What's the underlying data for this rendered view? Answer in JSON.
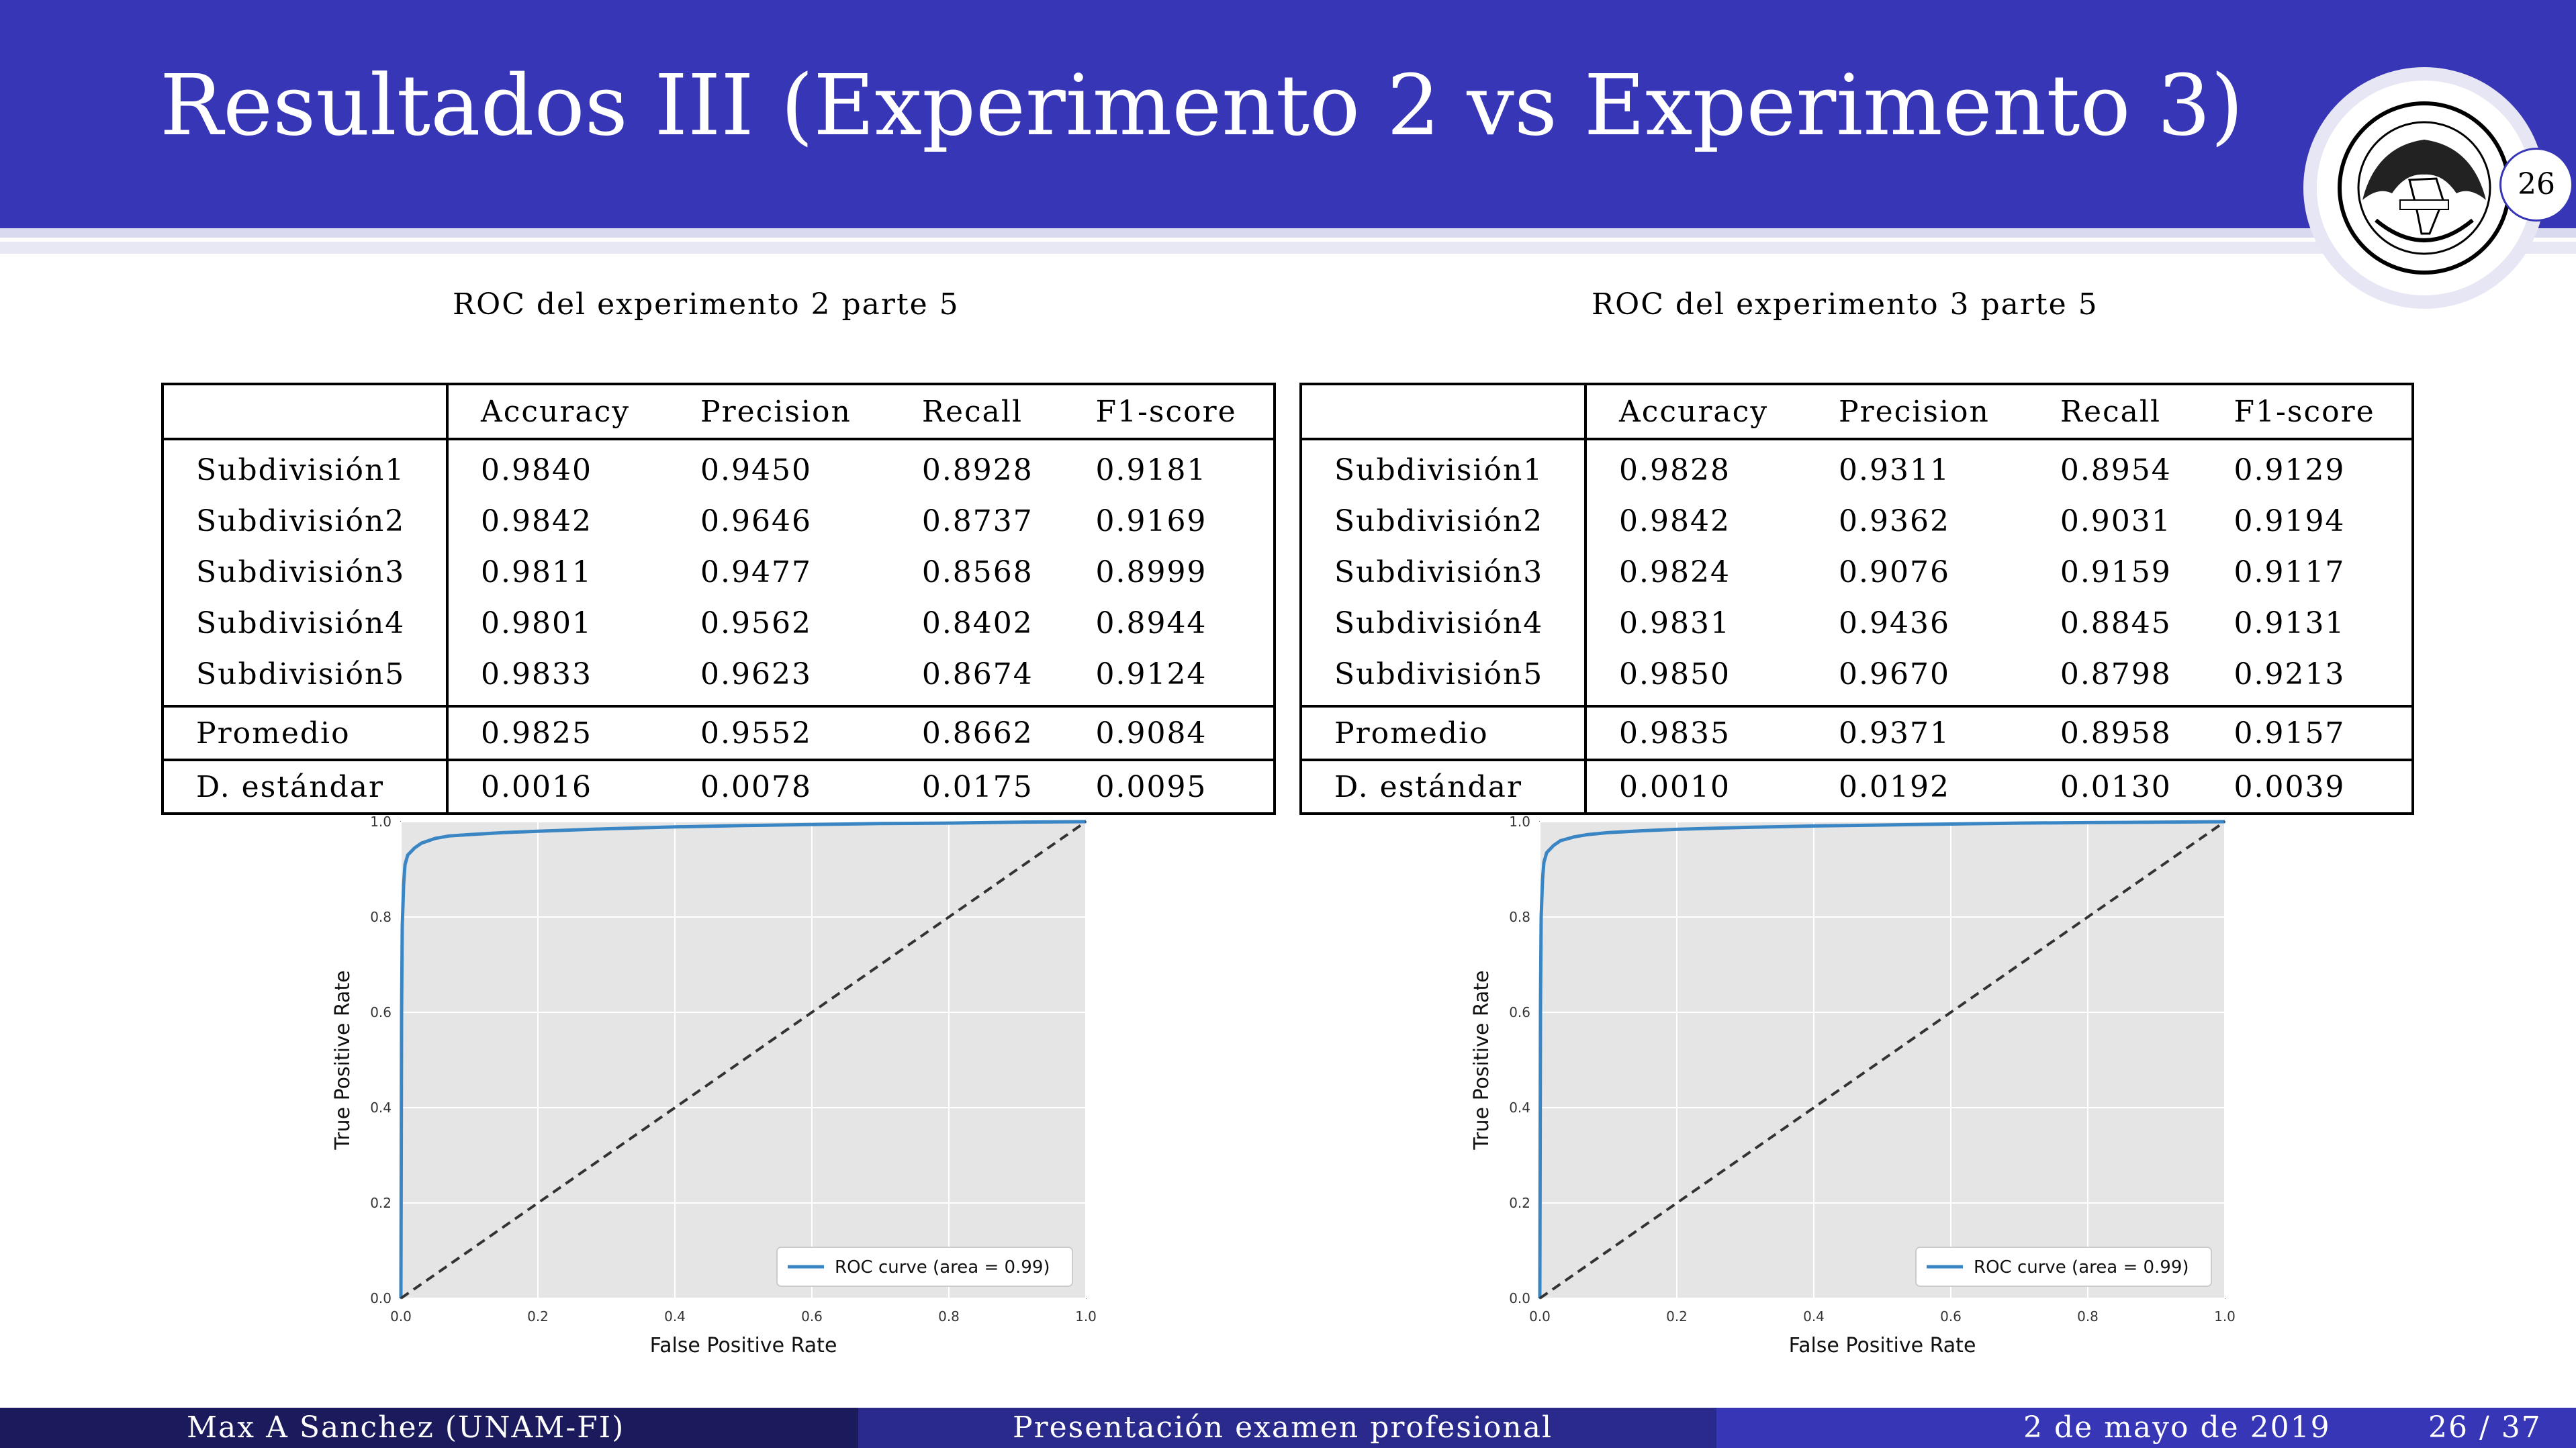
{
  "slide": {
    "title": "Resultados III (Experimento 2 vs Experimento 3)",
    "page_badge": "26"
  },
  "experiments": [
    {
      "caption": "ROC del experimento 2 parte 5",
      "columns": [
        "",
        "Accuracy",
        "Precision",
        "Recall",
        "F1-score"
      ],
      "rows": [
        [
          "Subdivisión1",
          "0.9840",
          "0.9450",
          "0.8928",
          "0.9181"
        ],
        [
          "Subdivisión2",
          "0.9842",
          "0.9646",
          "0.8737",
          "0.9169"
        ],
        [
          "Subdivisión3",
          "0.9811",
          "0.9477",
          "0.8568",
          "0.8999"
        ],
        [
          "Subdivisión4",
          "0.9801",
          "0.9562",
          "0.8402",
          "0.8944"
        ],
        [
          "Subdivisión5",
          "0.9833",
          "0.9623",
          "0.8674",
          "0.9124"
        ],
        [
          "Promedio",
          "0.9825",
          "0.9552",
          "0.8662",
          "0.9084"
        ],
        [
          "D. estándar",
          "0.0016",
          "0.0078",
          "0.0175",
          "0.0095"
        ]
      ]
    },
    {
      "caption": "ROC del experimento 3 parte 5",
      "columns": [
        "",
        "Accuracy",
        "Precision",
        "Recall",
        "F1-score"
      ],
      "rows": [
        [
          "Subdivisión1",
          "0.9828",
          "0.9311",
          "0.8954",
          "0.9129"
        ],
        [
          "Subdivisión2",
          "0.9842",
          "0.9362",
          "0.9031",
          "0.9194"
        ],
        [
          "Subdivisión3",
          "0.9824",
          "0.9076",
          "0.9159",
          "0.9117"
        ],
        [
          "Subdivisión4",
          "0.9831",
          "0.9436",
          "0.8845",
          "0.9131"
        ],
        [
          "Subdivisión5",
          "0.9850",
          "0.9670",
          "0.8798",
          "0.9213"
        ],
        [
          "Promedio",
          "0.9835",
          "0.9371",
          "0.8958",
          "0.9157"
        ],
        [
          "D. estándar",
          "0.0010",
          "0.0192",
          "0.0130",
          "0.0039"
        ]
      ]
    }
  ],
  "chart_data": [
    {
      "type": "line",
      "xlabel": "False Positive Rate",
      "ylabel": "True Positive Rate",
      "xlim": [
        0,
        1
      ],
      "ylim": [
        0,
        1
      ],
      "xticks": [
        "0.0",
        "0.2",
        "0.4",
        "0.6",
        "0.8",
        "1.0"
      ],
      "yticks": [
        "0.0",
        "0.2",
        "0.4",
        "0.6",
        "0.8",
        "1.0"
      ],
      "grid": true,
      "legend_position": "lower-right",
      "series": [
        {
          "name": "ROC curve (area = 0.99)",
          "color": "#3a86c4",
          "x": [
            0,
            0.001,
            0.002,
            0.004,
            0.006,
            0.01,
            0.02,
            0.03,
            0.05,
            0.07,
            0.1,
            0.15,
            0.2,
            0.3,
            0.4,
            0.5,
            0.6,
            0.7,
            0.8,
            0.9,
            1.0
          ],
          "y": [
            0,
            0.6,
            0.78,
            0.87,
            0.91,
            0.93,
            0.945,
            0.955,
            0.965,
            0.97,
            0.973,
            0.977,
            0.98,
            0.985,
            0.989,
            0.992,
            0.994,
            0.996,
            0.997,
            0.999,
            1.0
          ]
        },
        {
          "name": "",
          "color": "#333333",
          "dashed": true,
          "x": [
            0,
            1
          ],
          "y": [
            0,
            1
          ]
        }
      ]
    },
    {
      "type": "line",
      "xlabel": "False Positive Rate",
      "ylabel": "True Positive Rate",
      "xlim": [
        0,
        1
      ],
      "ylim": [
        0,
        1
      ],
      "xticks": [
        "0.0",
        "0.2",
        "0.4",
        "0.6",
        "0.8",
        "1.0"
      ],
      "yticks": [
        "0.0",
        "0.2",
        "0.4",
        "0.6",
        "0.8",
        "1.0"
      ],
      "grid": true,
      "legend_position": "lower-right",
      "series": [
        {
          "name": "ROC curve (area = 0.99)",
          "color": "#3a86c4",
          "x": [
            0,
            0.001,
            0.002,
            0.004,
            0.006,
            0.01,
            0.02,
            0.03,
            0.05,
            0.07,
            0.1,
            0.15,
            0.2,
            0.3,
            0.4,
            0.5,
            0.6,
            0.7,
            0.8,
            0.9,
            1.0
          ],
          "y": [
            0,
            0.62,
            0.8,
            0.88,
            0.915,
            0.935,
            0.95,
            0.96,
            0.968,
            0.973,
            0.977,
            0.981,
            0.984,
            0.988,
            0.991,
            0.993,
            0.995,
            0.997,
            0.998,
            0.999,
            1.0
          ]
        },
        {
          "name": "",
          "color": "#333333",
          "dashed": true,
          "x": [
            0,
            1
          ],
          "y": [
            0,
            1
          ]
        }
      ]
    }
  ],
  "footer": {
    "author": "Max A Sanchez  (UNAM-FI)",
    "presentation": "Presentación examen profesional",
    "date": "2 de mayo de 2019",
    "page": "26 / 37",
    "colors": [
      "#1a1a5c",
      "#2a2a8c",
      "#3636b6"
    ]
  }
}
